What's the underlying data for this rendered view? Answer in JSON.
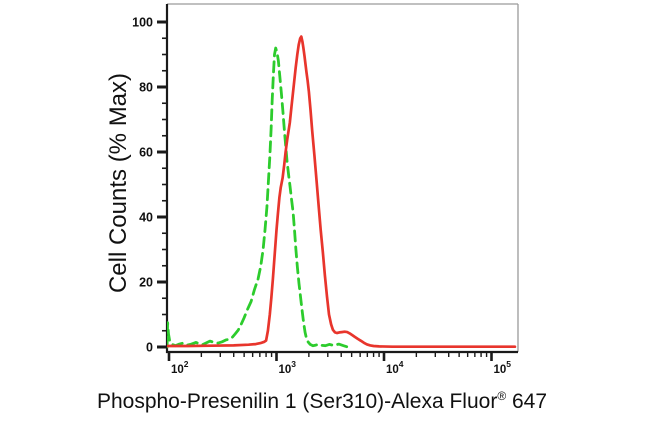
{
  "figure": {
    "background_color": "#ffffff"
  },
  "chart_data": {
    "type": "line",
    "subtype": "flow-cytometry-histogram",
    "title": "",
    "xlabel": "Phospho-Presenilin 1 (Ser310)-Alexa Fluor® 647",
    "xlabel_main": "Phospho-Presenilin 1 (Ser310)-Alexa Fluor",
    "xlabel_registered": "®",
    "xlabel_number": " 647",
    "ylabel": "Cell Counts (% Max)",
    "x_scale": "log",
    "x_range": [
      96,
      176000
    ],
    "y_range": [
      0,
      105.5
    ],
    "x_tick_base": "10",
    "x_tick_exponents": [
      2,
      3,
      4,
      5
    ],
    "y_ticks": [
      0,
      20,
      40,
      60,
      80,
      100
    ],
    "y_minor_tick_step": 5,
    "grid": false,
    "legend": "none",
    "axis_color": "#1a1a1a",
    "frame_color": "#9a9a9a",
    "series": [
      {
        "name": "green-dashed-curve",
        "style": "dashed",
        "color": "#2dcc2d",
        "points": [
          [
            96,
            0
          ],
          [
            97,
            7.5
          ],
          [
            99,
            4
          ],
          [
            102,
            1.5
          ],
          [
            107,
            0.8
          ],
          [
            115,
            0.4
          ],
          [
            125,
            0.9
          ],
          [
            135,
            1.2
          ],
          [
            148,
            0.6
          ],
          [
            162,
            0.9
          ],
          [
            178,
            1.4
          ],
          [
            192,
            1.0
          ],
          [
            205,
            0.7
          ],
          [
            220,
            1.2
          ],
          [
            240,
            1.8
          ],
          [
            262,
            1.4
          ],
          [
            286,
            1.2
          ],
          [
            312,
            1.6
          ],
          [
            340,
            2.2
          ],
          [
            366,
            2.4
          ],
          [
            388,
            3.0
          ],
          [
            412,
            4.0
          ],
          [
            440,
            5.2
          ],
          [
            466,
            6.8
          ],
          [
            500,
            9
          ],
          [
            536,
            11.5
          ],
          [
            580,
            14
          ],
          [
            622,
            17.5
          ],
          [
            674,
            21
          ],
          [
            715,
            25
          ],
          [
            750,
            30
          ],
          [
            782,
            36
          ],
          [
            815,
            43
          ],
          [
            845,
            52
          ],
          [
            868,
            59
          ],
          [
            890,
            67
          ],
          [
            912,
            76
          ],
          [
            935,
            84
          ],
          [
            958,
            90
          ],
          [
            982,
            92
          ],
          [
            1012,
            90.5
          ],
          [
            1042,
            88
          ],
          [
            1076,
            83
          ],
          [
            1110,
            78
          ],
          [
            1146,
            72.5
          ],
          [
            1182,
            67
          ],
          [
            1220,
            61.5
          ],
          [
            1256,
            57
          ],
          [
            1296,
            53
          ],
          [
            1336,
            49.5
          ],
          [
            1380,
            45.5
          ],
          [
            1426,
            41.5
          ],
          [
            1470,
            36
          ],
          [
            1516,
            30
          ],
          [
            1566,
            24.5
          ],
          [
            1620,
            19.5
          ],
          [
            1672,
            15.5
          ],
          [
            1726,
            11.5
          ],
          [
            1786,
            7.5
          ],
          [
            1846,
            4.5
          ],
          [
            1906,
            2.5
          ],
          [
            1972,
            1.5
          ],
          [
            2060,
            0.8
          ],
          [
            2180,
            0.4
          ],
          [
            2320,
            0.6
          ],
          [
            2480,
            0.9
          ],
          [
            2650,
            0.5
          ],
          [
            2850,
            0.4
          ],
          [
            3100,
            0.8
          ],
          [
            3400,
            0.5
          ],
          [
            3800,
            0.9
          ],
          [
            4200,
            0.4
          ],
          [
            4500,
            0.1
          ]
        ]
      },
      {
        "name": "red-solid-curve",
        "style": "solid",
        "color": "#e8352c",
        "points": [
          [
            96,
            0.3
          ],
          [
            150,
            0.3
          ],
          [
            250,
            0.4
          ],
          [
            400,
            0.5
          ],
          [
            550,
            0.7
          ],
          [
            640,
            0.9
          ],
          [
            710,
            1.2
          ],
          [
            770,
            1.6
          ],
          [
            800,
            2
          ],
          [
            832,
            5
          ],
          [
            866,
            10
          ],
          [
            895,
            15
          ],
          [
            925,
            21
          ],
          [
            950,
            26
          ],
          [
            975,
            31
          ],
          [
            1000,
            36
          ],
          [
            1030,
            41
          ],
          [
            1065,
            46
          ],
          [
            1095,
            49
          ],
          [
            1140,
            52
          ],
          [
            1180,
            56
          ],
          [
            1215,
            60
          ],
          [
            1260,
            64
          ],
          [
            1330,
            69
          ],
          [
            1380,
            74
          ],
          [
            1420,
            78
          ],
          [
            1465,
            82
          ],
          [
            1510,
            86
          ],
          [
            1560,
            90
          ],
          [
            1610,
            93
          ],
          [
            1660,
            95
          ],
          [
            1700,
            95.5
          ],
          [
            1740,
            94
          ],
          [
            1780,
            92
          ],
          [
            1820,
            89.5
          ],
          [
            1860,
            87
          ],
          [
            1900,
            84.5
          ],
          [
            1945,
            82
          ],
          [
            2000,
            78.5
          ],
          [
            2070,
            73
          ],
          [
            2150,
            66.5
          ],
          [
            2250,
            59
          ],
          [
            2360,
            51
          ],
          [
            2480,
            42.5
          ],
          [
            2580,
            36
          ],
          [
            2700,
            29
          ],
          [
            2820,
            22
          ],
          [
            2950,
            15.5
          ],
          [
            3080,
            10
          ],
          [
            3220,
            7
          ],
          [
            3350,
            5.3
          ],
          [
            3500,
            4.5
          ],
          [
            3650,
            4.3
          ],
          [
            3850,
            4.5
          ],
          [
            4050,
            4.6
          ],
          [
            4300,
            4.7
          ],
          [
            4550,
            4.6
          ],
          [
            4800,
            4.2
          ],
          [
            5050,
            3.7
          ],
          [
            5350,
            3.1
          ],
          [
            5700,
            2.5
          ],
          [
            6100,
            1.9
          ],
          [
            6500,
            1.3
          ],
          [
            6950,
            0.8
          ],
          [
            7450,
            0.5
          ],
          [
            8000,
            0.3
          ],
          [
            9000,
            0.2
          ],
          [
            12000,
            0.1
          ],
          [
            40000,
            0.1
          ],
          [
            165000,
            0.1
          ]
        ]
      }
    ]
  }
}
